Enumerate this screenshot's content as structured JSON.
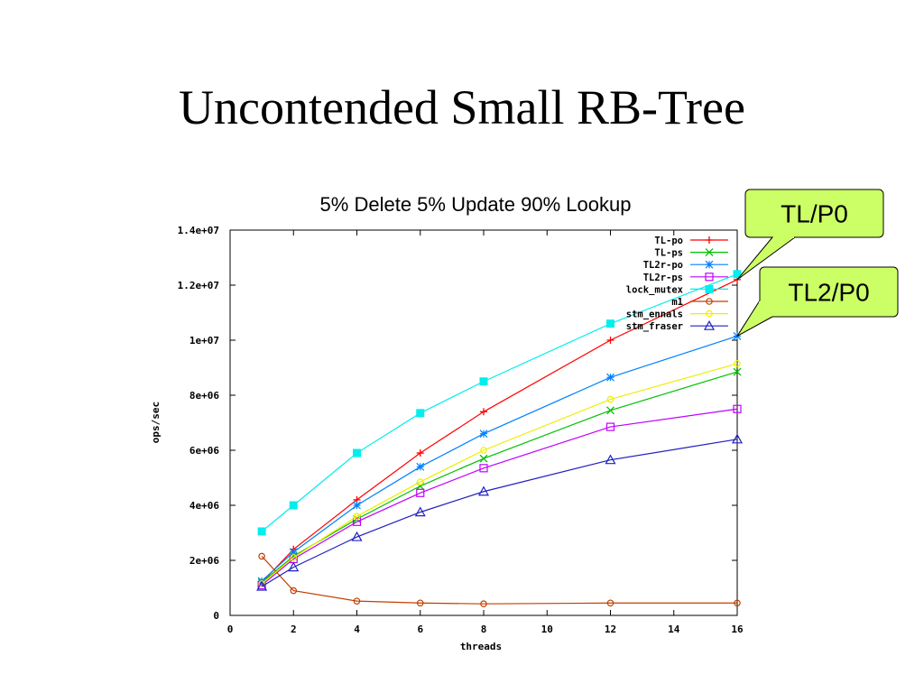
{
  "slide": {
    "title": "Uncontended Small RB-Tree"
  },
  "chart_data": {
    "type": "line",
    "title": "5% Delete 5% Update 90% Lookup",
    "xlabel": "threads",
    "ylabel": "ops/sec",
    "xlim": [
      0,
      16
    ],
    "ylim": [
      0,
      14000000
    ],
    "xticks": [
      "0",
      "2",
      "4",
      "6",
      "8",
      "10",
      "12",
      "14",
      "16"
    ],
    "yticks": [
      "0",
      "2e+06",
      "4e+06",
      "6e+06",
      "8e+06",
      "1e+07",
      "1.2e+07",
      "1.4e+07"
    ],
    "grid": false,
    "legend_position": "top-right",
    "x": [
      1,
      2,
      4,
      6,
      8,
      12,
      16
    ],
    "series": [
      {
        "name": "TL-po",
        "color": "#ff0000",
        "marker": "plus",
        "values": [
          1200000,
          2400000,
          4200000,
          5900000,
          7400000,
          10000000,
          12200000
        ]
      },
      {
        "name": "TL-ps",
        "color": "#00c000",
        "marker": "cross",
        "values": [
          1200000,
          2150000,
          3500000,
          4700000,
          5700000,
          7450000,
          8850000
        ]
      },
      {
        "name": "TL2r-po",
        "color": "#0080ff",
        "marker": "star",
        "values": [
          1250000,
          2300000,
          4000000,
          5400000,
          6600000,
          8650000,
          10150000
        ]
      },
      {
        "name": "TL2r-ps",
        "color": "#c000ff",
        "marker": "square",
        "values": [
          1100000,
          2050000,
          3400000,
          4450000,
          5350000,
          6850000,
          7500000
        ]
      },
      {
        "name": "lock_mutex",
        "color": "#00eeee",
        "marker": "filled-square",
        "values": [
          3050000,
          4000000,
          5900000,
          7350000,
          8500000,
          10600000,
          12400000
        ]
      },
      {
        "name": "m1",
        "color": "#c04000",
        "marker": "circle",
        "values": [
          2150000,
          900000,
          520000,
          450000,
          420000,
          450000,
          450000
        ]
      },
      {
        "name": "stm_ennals",
        "color": "#eeee00",
        "marker": "circle",
        "values": [
          1150000,
          2100000,
          3600000,
          4850000,
          6000000,
          7850000,
          9150000
        ]
      },
      {
        "name": "stm_fraser",
        "color": "#2020c0",
        "marker": "triangle",
        "values": [
          1050000,
          1750000,
          2850000,
          3750000,
          4500000,
          5650000,
          6400000
        ]
      }
    ],
    "annotations": [
      {
        "text": "TL/P0",
        "points_to_series": "TL-po",
        "bg_color": "#ccff66"
      },
      {
        "text": "TL2/P0",
        "points_to_series": "TL2r-po",
        "bg_color": "#ccff66"
      }
    ]
  }
}
